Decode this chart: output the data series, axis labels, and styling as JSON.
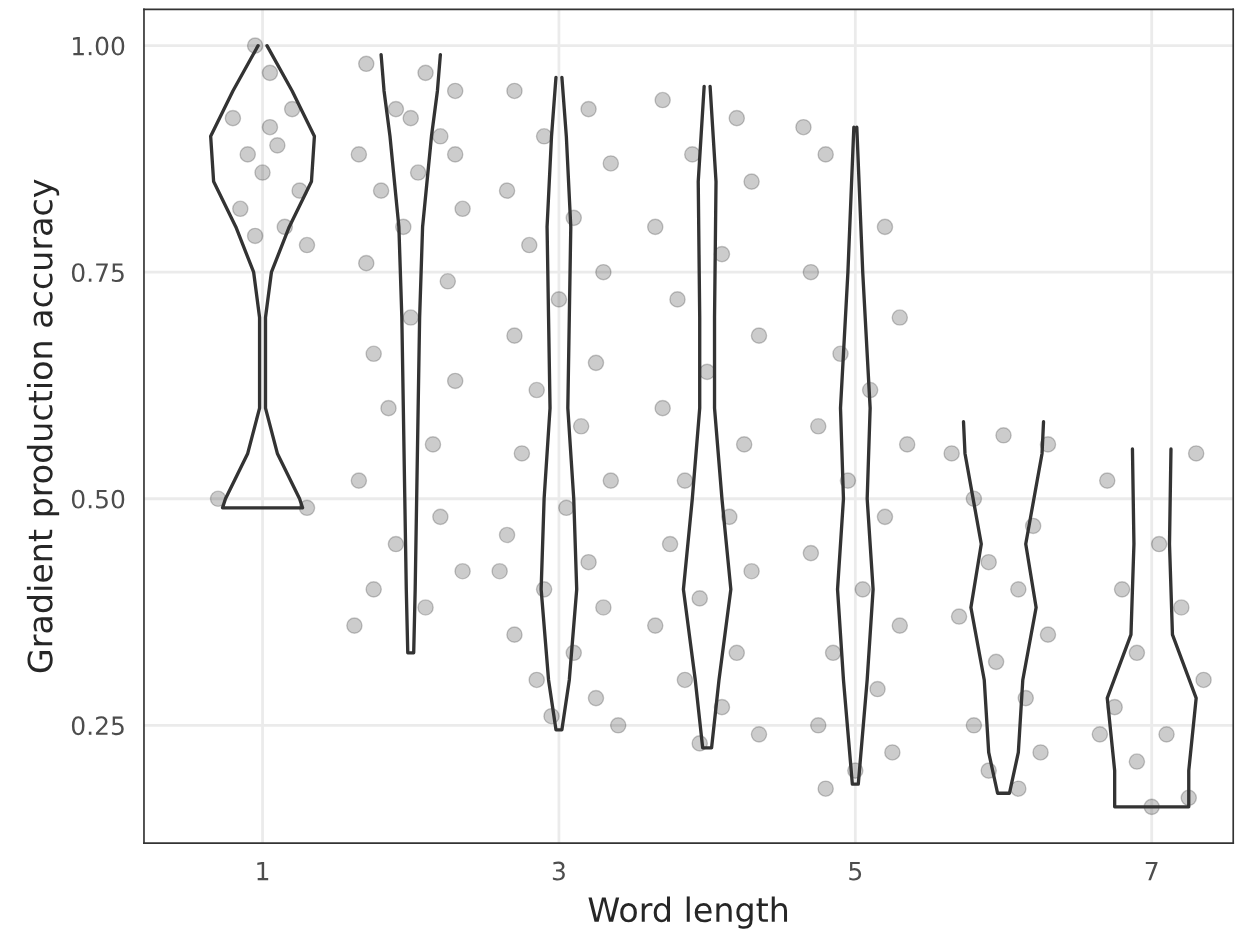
{
  "chart_data": {
    "type": "scatter",
    "xlabel": "Word length",
    "ylabel": "Gradient production accuracy",
    "xlim": [
      0.2,
      7.55
    ],
    "ylim": [
      0.12,
      1.04
    ],
    "xticks": [
      1,
      3,
      5,
      7
    ],
    "yticks": [
      {
        "value": 0.25,
        "label": "0.25"
      },
      {
        "value": 0.5,
        "label": "0.50"
      },
      {
        "value": 0.75,
        "label": "0.75"
      },
      {
        "value": 1.0,
        "label": "1.00"
      }
    ],
    "grid": true,
    "marker": "circle",
    "series": [
      {
        "type": "scatter",
        "color": "#000000",
        "x": [
          0.95,
          1.05,
          0.8,
          1.2,
          1.1,
          0.9,
          1.0,
          1.25,
          0.85,
          1.3,
          1.15,
          0.95,
          0.7,
          1.3,
          1.05,
          1.7,
          2.1,
          2.3,
          1.9,
          2.2,
          1.65,
          2.05,
          1.8,
          2.35,
          1.95,
          1.7,
          2.25,
          2.0,
          1.75,
          2.3,
          1.85,
          2.15,
          1.65,
          2.2,
          1.9,
          2.35,
          1.75,
          2.1,
          1.62,
          2.0,
          2.3,
          2.7,
          3.2,
          2.9,
          3.35,
          2.65,
          3.1,
          2.8,
          3.3,
          3.0,
          2.7,
          3.25,
          2.85,
          3.15,
          2.75,
          3.35,
          3.05,
          2.65,
          3.2,
          2.9,
          3.3,
          2.7,
          3.1,
          2.85,
          3.25,
          2.95,
          3.4,
          2.6,
          3.7,
          4.2,
          3.9,
          4.3,
          3.65,
          4.1,
          3.8,
          4.35,
          4.0,
          3.7,
          4.25,
          3.85,
          4.15,
          3.75,
          4.3,
          3.95,
          3.65,
          4.2,
          3.85,
          4.1,
          3.95,
          4.35,
          4.65,
          4.8,
          5.2,
          4.7,
          5.3,
          4.9,
          5.1,
          4.75,
          5.35,
          4.95,
          5.2,
          4.7,
          5.05,
          5.3,
          4.85,
          5.15,
          4.75,
          5.25,
          4.8,
          5.0,
          5.65,
          6.0,
          6.3,
          5.8,
          6.2,
          5.9,
          6.1,
          5.7,
          6.3,
          5.95,
          6.15,
          5.8,
          6.25,
          5.9,
          6.1,
          6.7,
          7.3,
          7.05,
          6.8,
          7.2,
          6.9,
          7.35,
          6.75,
          7.1,
          6.9,
          7.25,
          6.65,
          7.0
        ],
        "values": [
          1.0,
          0.97,
          0.92,
          0.93,
          0.89,
          0.88,
          0.86,
          0.84,
          0.82,
          0.78,
          0.8,
          0.79,
          0.5,
          0.49,
          0.91,
          0.98,
          0.97,
          0.95,
          0.93,
          0.9,
          0.88,
          0.86,
          0.84,
          0.82,
          0.8,
          0.76,
          0.74,
          0.7,
          0.66,
          0.63,
          0.6,
          0.56,
          0.52,
          0.48,
          0.45,
          0.42,
          0.4,
          0.38,
          0.36,
          0.92,
          0.88,
          0.95,
          0.93,
          0.9,
          0.87,
          0.84,
          0.81,
          0.78,
          0.75,
          0.72,
          0.68,
          0.65,
          0.62,
          0.58,
          0.55,
          0.52,
          0.49,
          0.46,
          0.43,
          0.4,
          0.38,
          0.35,
          0.33,
          0.3,
          0.28,
          0.26,
          0.25,
          0.42,
          0.94,
          0.92,
          0.88,
          0.85,
          0.8,
          0.77,
          0.72,
          0.68,
          0.64,
          0.6,
          0.56,
          0.52,
          0.48,
          0.45,
          0.42,
          0.39,
          0.36,
          0.33,
          0.3,
          0.27,
          0.23,
          0.24,
          0.91,
          0.88,
          0.8,
          0.75,
          0.7,
          0.66,
          0.62,
          0.58,
          0.56,
          0.52,
          0.48,
          0.44,
          0.4,
          0.36,
          0.33,
          0.29,
          0.25,
          0.22,
          0.18,
          0.2,
          0.55,
          0.57,
          0.56,
          0.5,
          0.47,
          0.43,
          0.4,
          0.37,
          0.35,
          0.32,
          0.28,
          0.25,
          0.22,
          0.2,
          0.18,
          0.52,
          0.55,
          0.45,
          0.4,
          0.38,
          0.33,
          0.3,
          0.27,
          0.24,
          0.21,
          0.17,
          0.24,
          0.16
        ]
      },
      {
        "type": "line",
        "marker": "none",
        "color": "#333333",
        "x": [
          1.03,
          1.2,
          1.35,
          1.33,
          1.18,
          1.06,
          1.02,
          1.02,
          1.1,
          1.25,
          1.27,
          0.73,
          0.75,
          0.9,
          0.98,
          0.98,
          0.94,
          0.82,
          0.67,
          0.65,
          0.8,
          0.97
        ],
        "values": [
          1.0,
          0.95,
          0.9,
          0.85,
          0.8,
          0.75,
          0.7,
          0.6,
          0.55,
          0.5,
          0.49,
          0.49,
          0.5,
          0.55,
          0.6,
          0.7,
          0.75,
          0.8,
          0.85,
          0.9,
          0.95,
          1.0
        ]
      },
      {
        "type": "line",
        "marker": "none",
        "color": "#333333",
        "x": [
          2.2,
          2.18,
          2.14,
          2.08,
          2.06,
          2.05,
          2.04,
          2.03,
          2.02,
          1.98,
          1.97,
          1.96,
          1.95,
          1.94,
          1.92,
          1.86,
          1.82,
          1.8
        ],
        "values": [
          0.99,
          0.95,
          0.9,
          0.8,
          0.7,
          0.6,
          0.5,
          0.4,
          0.33,
          0.33,
          0.4,
          0.5,
          0.6,
          0.7,
          0.8,
          0.9,
          0.95,
          0.99
        ]
      },
      {
        "type": "line",
        "marker": "none",
        "color": "#333333",
        "x": [
          3.02,
          3.05,
          3.08,
          3.07,
          3.06,
          3.1,
          3.12,
          3.07,
          3.02,
          2.98,
          2.93,
          2.88,
          2.9,
          2.94,
          2.93,
          2.92,
          2.95,
          2.98
        ],
        "values": [
          0.965,
          0.9,
          0.8,
          0.7,
          0.6,
          0.5,
          0.4,
          0.3,
          0.245,
          0.245,
          0.3,
          0.4,
          0.5,
          0.6,
          0.7,
          0.8,
          0.9,
          0.965
        ]
      },
      {
        "type": "line",
        "marker": "none",
        "color": "#333333",
        "x": [
          4.02,
          4.06,
          4.05,
          4.05,
          4.1,
          4.16,
          4.08,
          4.03,
          3.97,
          3.92,
          3.84,
          3.9,
          3.95,
          3.95,
          3.94,
          3.98
        ],
        "values": [
          0.955,
          0.85,
          0.7,
          0.6,
          0.5,
          0.4,
          0.3,
          0.225,
          0.225,
          0.3,
          0.4,
          0.5,
          0.6,
          0.7,
          0.85,
          0.955
        ]
      },
      {
        "type": "line",
        "marker": "none",
        "color": "#333333",
        "x": [
          5.01,
          5.05,
          5.1,
          5.08,
          5.12,
          5.08,
          5.02,
          4.98,
          4.92,
          4.88,
          4.92,
          4.9,
          4.95,
          4.99
        ],
        "values": [
          0.91,
          0.75,
          0.6,
          0.5,
          0.4,
          0.3,
          0.185,
          0.185,
          0.3,
          0.4,
          0.5,
          0.6,
          0.75,
          0.91
        ]
      },
      {
        "type": "line",
        "marker": "none",
        "color": "#333333",
        "x": [
          6.27,
          6.26,
          6.15,
          6.22,
          6.13,
          6.1,
          6.04,
          5.96,
          5.9,
          5.87,
          5.78,
          5.85,
          5.74,
          5.73
        ],
        "values": [
          0.585,
          0.55,
          0.45,
          0.38,
          0.3,
          0.22,
          0.175,
          0.175,
          0.22,
          0.3,
          0.38,
          0.45,
          0.55,
          0.585
        ]
      },
      {
        "type": "line",
        "marker": "none",
        "color": "#333333",
        "x": [
          7.13,
          7.12,
          7.14,
          7.3,
          7.25,
          7.25,
          6.75,
          6.75,
          6.7,
          6.86,
          6.88,
          6.87
        ],
        "values": [
          0.555,
          0.45,
          0.35,
          0.28,
          0.2,
          0.16,
          0.16,
          0.2,
          0.28,
          0.35,
          0.45,
          0.555
        ]
      }
    ]
  }
}
